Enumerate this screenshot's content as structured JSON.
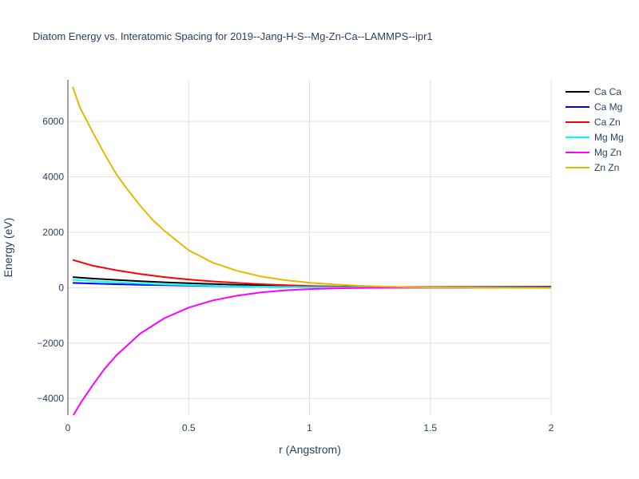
{
  "chart_data": {
    "type": "line",
    "title": "Diatom Energy vs. Interatomic Spacing for 2019--Jang-H-S--Mg-Zn-Ca--LAMMPS--ipr1",
    "xlabel": "r (Angstrom)",
    "ylabel": "Energy (eV)",
    "xlim": [
      0,
      2
    ],
    "ylim": [
      -4600,
      7500
    ],
    "xticks": [
      0,
      0.5,
      1,
      1.5,
      2
    ],
    "xtick_labels": [
      "0",
      "0.5",
      "1",
      "1.5",
      "2"
    ],
    "yticks": [
      -4000,
      -2000,
      0,
      2000,
      4000,
      6000
    ],
    "ytick_labels": [
      "−4000",
      "−2000",
      "0",
      "2000",
      "4000",
      "6000"
    ],
    "grid": true,
    "legend_position": "top-right",
    "series": [
      {
        "name": "Ca Ca",
        "color": "#000000",
        "x": [
          0.02,
          0.1,
          0.2,
          0.3,
          0.4,
          0.5,
          0.6,
          0.7,
          0.8,
          0.9,
          1.0,
          1.2,
          1.5,
          2.0
        ],
        "y": [
          380,
          330,
          280,
          235,
          195,
          160,
          130,
          105,
          85,
          65,
          50,
          30,
          20,
          30
        ]
      },
      {
        "name": "Ca Mg",
        "color": "#0000ff",
        "x": [
          0.02,
          0.1,
          0.2,
          0.3,
          0.4,
          0.5,
          0.6,
          0.7,
          0.8,
          0.9,
          1.0,
          1.2,
          1.5,
          2.0
        ],
        "y": [
          170,
          150,
          125,
          105,
          88,
          72,
          58,
          46,
          36,
          28,
          20,
          10,
          5,
          5
        ]
      },
      {
        "name": "Ca Zn",
        "color": "#ff0000",
        "x": [
          0.02,
          0.1,
          0.2,
          0.3,
          0.4,
          0.5,
          0.6,
          0.7,
          0.8,
          0.9,
          1.0,
          1.1,
          1.2,
          1.5,
          2.0
        ],
        "y": [
          1000,
          800,
          630,
          490,
          380,
          295,
          225,
          170,
          125,
          90,
          60,
          40,
          25,
          5,
          -5
        ]
      },
      {
        "name": "Mg Mg",
        "color": "#00ffff",
        "x": [
          0.02,
          0.1,
          0.2,
          0.3,
          0.4,
          0.5,
          0.6,
          0.7,
          0.8,
          0.9,
          1.0,
          1.2,
          1.5,
          2.0
        ],
        "y": [
          280,
          240,
          195,
          155,
          120,
          92,
          70,
          52,
          38,
          27,
          18,
          8,
          2,
          0
        ]
      },
      {
        "name": "Mg Zn",
        "color": "#ff00ff",
        "x": [
          0.02,
          0.05,
          0.1,
          0.15,
          0.2,
          0.3,
          0.4,
          0.5,
          0.6,
          0.7,
          0.8,
          0.9,
          1.0,
          1.1,
          1.2,
          1.3,
          1.5,
          2.0
        ],
        "y": [
          -4650,
          -4200,
          -3550,
          -2950,
          -2450,
          -1650,
          -1100,
          -720,
          -460,
          -290,
          -170,
          -95,
          -50,
          -25,
          -12,
          -5,
          -1,
          0
        ]
      },
      {
        "name": "Zn Zn",
        "color": "#e6b800",
        "x": [
          0.02,
          0.05,
          0.1,
          0.15,
          0.2,
          0.25,
          0.3,
          0.35,
          0.4,
          0.5,
          0.6,
          0.7,
          0.8,
          0.9,
          1.0,
          1.1,
          1.2,
          1.3,
          1.4,
          1.5,
          1.7,
          2.0
        ],
        "y": [
          7250,
          6500,
          5650,
          4850,
          4100,
          3500,
          2950,
          2450,
          2050,
          1350,
          900,
          610,
          400,
          270,
          180,
          115,
          70,
          40,
          22,
          10,
          2,
          -10
        ]
      }
    ]
  }
}
